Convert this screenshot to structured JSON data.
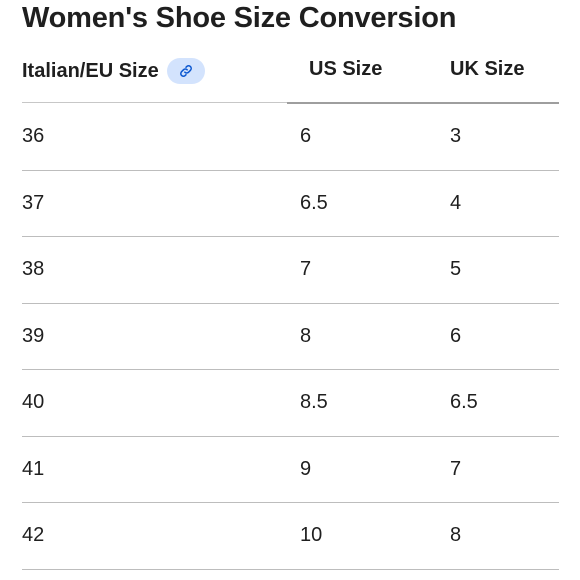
{
  "title": "Women's Shoe Size Conversion",
  "columns": {
    "eu": "Italian/EU Size",
    "us": "US Size",
    "uk": "UK Size"
  },
  "header_icon": "link-icon",
  "colors": {
    "link_chip_bg": "#d3e3fd",
    "link_icon": "#0b57d0",
    "text": "#1f1f1f",
    "divider": "#bdbdbd"
  },
  "rows": [
    {
      "eu": "36",
      "us": "6",
      "uk": "3"
    },
    {
      "eu": "37",
      "us": "6.5",
      "uk": "4"
    },
    {
      "eu": "38",
      "us": "7",
      "uk": "5"
    },
    {
      "eu": "39",
      "us": "8",
      "uk": "6"
    },
    {
      "eu": "40",
      "us": "8.5",
      "uk": "6.5"
    },
    {
      "eu": "41",
      "us": "9",
      "uk": "7"
    },
    {
      "eu": "42",
      "us": "10",
      "uk": "8"
    }
  ]
}
